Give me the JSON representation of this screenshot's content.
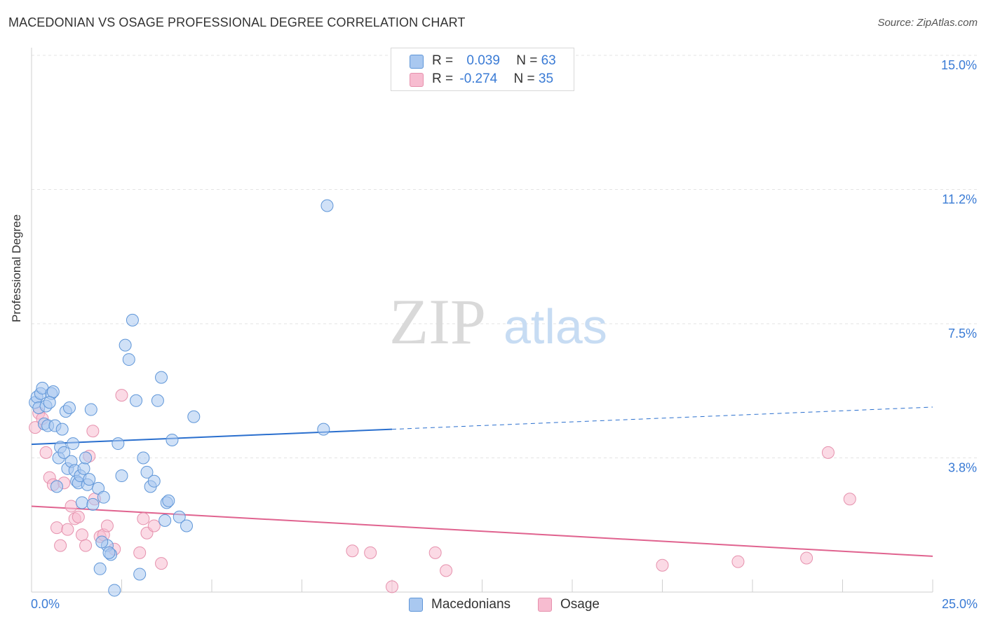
{
  "title": "MACEDONIAN VS OSAGE PROFESSIONAL DEGREE CORRELATION CHART",
  "source": "Source: ZipAtlas.com",
  "colors": {
    "macedonian_fill": "#a9c8f0",
    "macedonian_stroke": "#5f96d8",
    "macedonian_line": "#2a6fce",
    "osage_fill": "#f7bcd0",
    "osage_stroke": "#e691ad",
    "osage_line": "#e0638f",
    "tick_label": "#3a7bd5",
    "grid": "#e3e3e3"
  },
  "legend_top": {
    "rows": [
      {
        "r_label": "R = ",
        "r_value": "0.039",
        "n_label": "N = ",
        "n_value": "63"
      },
      {
        "r_label": "R = ",
        "r_value": "-0.274",
        "n_label": "N = ",
        "n_value": "35"
      }
    ]
  },
  "legend_bottom": [
    "Macedonians",
    "Osage"
  ],
  "watermark": {
    "part1": "ZIP",
    "part2": "atlas"
  },
  "chart_data": {
    "type": "scatter",
    "title": "MACEDONIAN VS OSAGE PROFESSIONAL DEGREE CORRELATION CHART",
    "xlabel": "",
    "ylabel": "Professional Degree",
    "xlim": [
      0,
      25
    ],
    "ylim": [
      0,
      15
    ],
    "x_tick_labels": [
      "0.0%",
      "25.0%"
    ],
    "y_ticks": [
      3.75,
      7.5,
      11.25,
      15.0
    ],
    "y_tick_labels": [
      "3.8%",
      "7.5%",
      "11.2%",
      "15.0%"
    ],
    "series": [
      {
        "name": "Macedonians",
        "r": 0.039,
        "n": 63,
        "trend": {
          "x0": 0,
          "y0": 4.13,
          "x1": 10.0,
          "y1": 4.55,
          "dashed_to_x": 25.0,
          "dashed_to_y": 5.17
        },
        "points": [
          [
            0.1,
            5.3
          ],
          [
            0.15,
            5.45
          ],
          [
            0.2,
            5.15
          ],
          [
            0.25,
            5.55
          ],
          [
            0.3,
            5.7
          ],
          [
            0.35,
            4.7
          ],
          [
            0.4,
            5.2
          ],
          [
            0.45,
            4.65
          ],
          [
            0.55,
            5.55
          ],
          [
            0.6,
            5.6
          ],
          [
            0.65,
            4.65
          ],
          [
            0.75,
            3.75
          ],
          [
            0.8,
            4.05
          ],
          [
            0.85,
            4.55
          ],
          [
            0.9,
            3.9
          ],
          [
            0.95,
            5.05
          ],
          [
            1.0,
            3.45
          ],
          [
            1.05,
            5.15
          ],
          [
            1.1,
            3.65
          ],
          [
            1.15,
            4.15
          ],
          [
            1.2,
            3.4
          ],
          [
            1.25,
            3.1
          ],
          [
            1.3,
            3.05
          ],
          [
            1.35,
            3.25
          ],
          [
            1.4,
            2.5
          ],
          [
            1.45,
            3.45
          ],
          [
            1.5,
            3.75
          ],
          [
            1.55,
            3.0
          ],
          [
            1.6,
            3.15
          ],
          [
            1.65,
            5.1
          ],
          [
            1.7,
            2.45
          ],
          [
            1.85,
            2.9
          ],
          [
            1.9,
            0.65
          ],
          [
            2.0,
            2.65
          ],
          [
            2.1,
            1.3
          ],
          [
            2.2,
            1.05
          ],
          [
            2.3,
            0.05
          ],
          [
            2.4,
            4.15
          ],
          [
            2.5,
            3.25
          ],
          [
            2.6,
            6.9
          ],
          [
            2.7,
            6.5
          ],
          [
            2.8,
            7.6
          ],
          [
            2.9,
            5.35
          ],
          [
            3.0,
            0.5
          ],
          [
            3.1,
            3.75
          ],
          [
            3.2,
            3.35
          ],
          [
            3.3,
            2.95
          ],
          [
            3.4,
            3.1
          ],
          [
            3.5,
            5.35
          ],
          [
            3.6,
            6.0
          ],
          [
            3.7,
            2.0
          ],
          [
            3.75,
            2.5
          ],
          [
            3.8,
            2.55
          ],
          [
            3.9,
            4.25
          ],
          [
            4.1,
            2.1
          ],
          [
            4.3,
            1.85
          ],
          [
            4.5,
            4.9
          ],
          [
            1.95,
            1.4
          ],
          [
            2.15,
            1.1
          ],
          [
            0.5,
            5.3
          ],
          [
            0.7,
            2.95
          ],
          [
            8.1,
            4.55
          ],
          [
            8.2,
            10.8
          ]
        ]
      },
      {
        "name": "Osage",
        "r": -0.274,
        "n": 35,
        "trend": {
          "x0": 0,
          "y0": 2.4,
          "x1": 25.0,
          "y1": 1.0
        },
        "points": [
          [
            0.1,
            4.6
          ],
          [
            0.2,
            5.0
          ],
          [
            0.3,
            4.85
          ],
          [
            0.4,
            3.9
          ],
          [
            0.5,
            3.2
          ],
          [
            0.6,
            3.0
          ],
          [
            0.7,
            1.8
          ],
          [
            0.8,
            1.3
          ],
          [
            0.9,
            3.05
          ],
          [
            1.0,
            1.75
          ],
          [
            1.1,
            2.4
          ],
          [
            1.2,
            2.05
          ],
          [
            1.3,
            2.1
          ],
          [
            1.4,
            1.6
          ],
          [
            1.5,
            1.3
          ],
          [
            1.6,
            3.8
          ],
          [
            1.7,
            4.5
          ],
          [
            1.75,
            2.6
          ],
          [
            1.9,
            1.55
          ],
          [
            2.0,
            1.6
          ],
          [
            2.1,
            1.85
          ],
          [
            2.3,
            1.2
          ],
          [
            2.5,
            5.5
          ],
          [
            3.0,
            1.1
          ],
          [
            3.1,
            2.05
          ],
          [
            3.2,
            1.65
          ],
          [
            3.4,
            1.85
          ],
          [
            3.6,
            0.8
          ],
          [
            8.9,
            1.15
          ],
          [
            9.4,
            1.1
          ],
          [
            10.0,
            0.15
          ],
          [
            11.2,
            1.1
          ],
          [
            11.5,
            0.6
          ],
          [
            17.5,
            0.75
          ],
          [
            19.6,
            0.85
          ]
        ],
        "extra_points": [
          [
            21.5,
            0.95
          ],
          [
            22.1,
            3.9
          ],
          [
            22.7,
            2.6
          ]
        ]
      }
    ]
  }
}
